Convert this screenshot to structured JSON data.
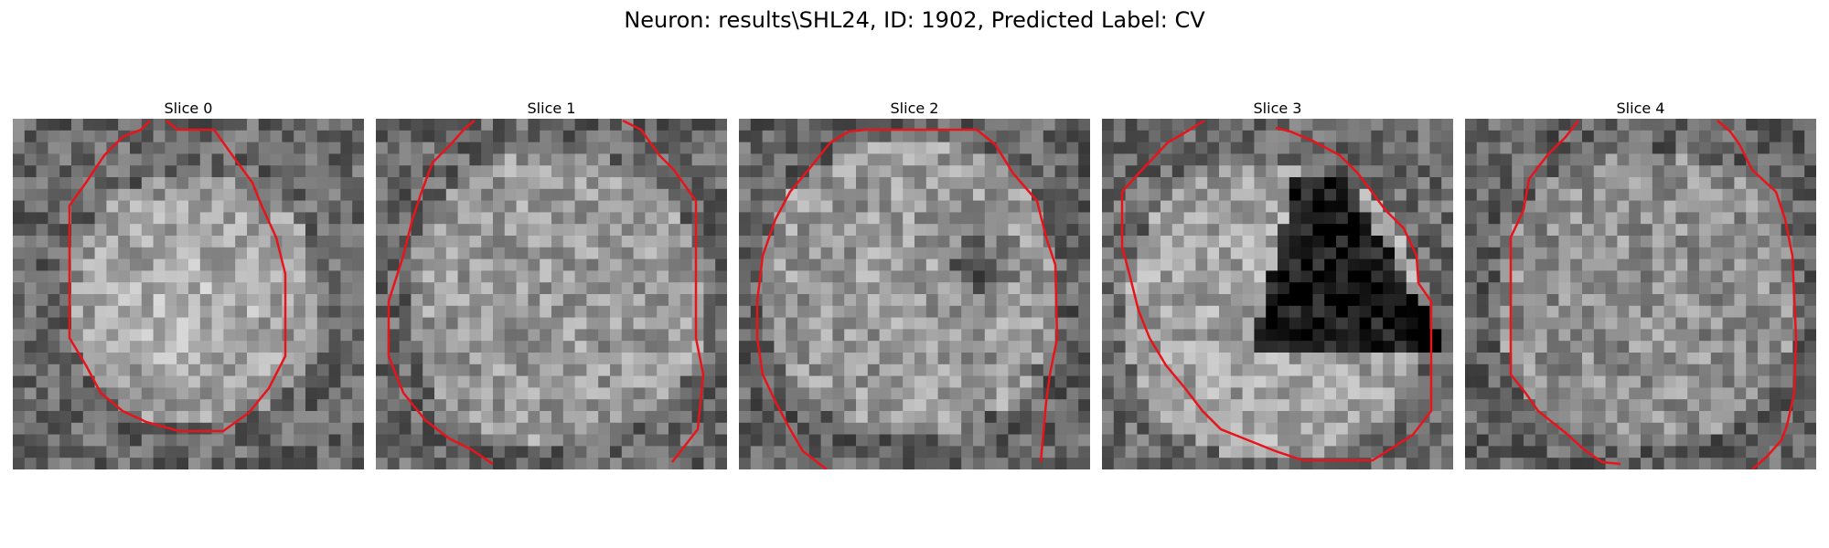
{
  "figure": {
    "title": "Neuron: results\\SHL24, ID: 1902, Predicted Label: CV",
    "outline_color": "#e8141b"
  },
  "slices": [
    {
      "title": "Slice 0",
      "image": "grayscale microscopy patch, bright round cell body in center"
    },
    {
      "title": "Slice 1",
      "image": "grayscale microscopy patch, mottled bright texture"
    },
    {
      "title": "Slice 2",
      "image": "grayscale microscopy patch, dark spot right of center"
    },
    {
      "title": "Slice 3",
      "image": "grayscale microscopy patch, large dark triangular region"
    },
    {
      "title": "Slice 4",
      "image": "grayscale microscopy patch, noisy mid-gray texture"
    }
  ]
}
